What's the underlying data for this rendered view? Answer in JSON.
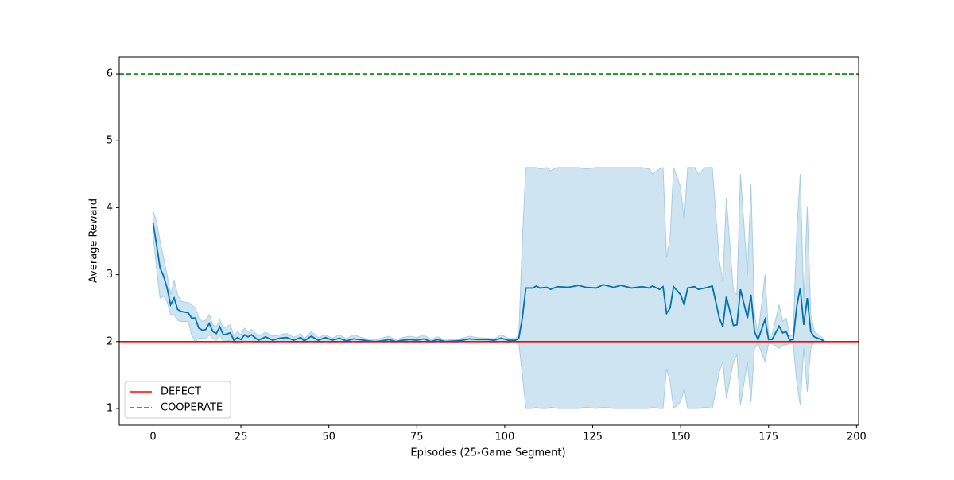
{
  "chart_data": {
    "type": "line",
    "xlabel": "Episodes (25-Game Segment)",
    "ylabel": "Average Reward",
    "xlim": [
      -9.6,
      200.6
    ],
    "ylim": [
      0.75,
      6.25
    ],
    "xticks": [
      0,
      25,
      50,
      75,
      100,
      125,
      150,
      175,
      200
    ],
    "yticks": [
      1,
      2,
      3,
      4,
      5,
      6
    ],
    "legend": "lower left",
    "x": [
      0,
      1,
      2,
      3,
      4,
      5,
      6,
      7,
      8,
      10,
      11,
      12,
      13,
      14,
      15,
      16,
      17,
      18,
      19,
      20,
      22,
      23,
      24,
      25,
      26,
      27,
      28,
      30,
      32,
      34,
      36,
      38,
      40,
      42,
      43,
      45,
      47,
      49,
      51,
      53,
      55,
      57,
      60,
      63,
      65,
      67,
      69,
      71,
      73,
      75,
      77,
      79,
      81,
      83,
      86,
      88,
      90,
      92,
      95,
      97,
      99,
      101,
      103,
      104,
      105,
      106,
      108,
      109,
      110,
      112,
      113,
      115,
      118,
      121,
      123,
      126,
      128,
      131,
      133,
      136,
      139,
      141,
      142,
      144,
      145,
      146,
      147,
      148,
      150,
      151,
      152,
      154,
      155,
      157,
      159,
      161,
      162,
      163,
      165,
      166,
      167,
      169,
      170,
      171,
      172,
      174,
      175,
      176,
      178,
      179,
      180,
      181,
      182,
      183,
      184,
      185,
      186,
      187,
      188,
      190,
      191
    ],
    "series": [
      {
        "color": "#0072b2",
        "band_color": "#a6cde3",
        "values": [
          3.78,
          3.45,
          3.1,
          2.98,
          2.8,
          2.55,
          2.65,
          2.48,
          2.45,
          2.43,
          2.35,
          2.35,
          2.2,
          2.17,
          2.18,
          2.27,
          2.15,
          2.12,
          2.22,
          2.1,
          2.13,
          2.02,
          2.06,
          2.03,
          2.1,
          2.07,
          2.1,
          2.02,
          2.07,
          2.02,
          2.05,
          2.06,
          2.02,
          2.06,
          2.01,
          2.08,
          2.02,
          2.06,
          2.02,
          2.05,
          2.01,
          2.04,
          2.02,
          2.0,
          2.01,
          2.03,
          2.0,
          2.02,
          2.03,
          2.02,
          2.04,
          2.0,
          2.03,
          2.0,
          2.01,
          2.02,
          2.04,
          2.03,
          2.03,
          2.02,
          2.05,
          2.02,
          2.02,
          2.05,
          2.35,
          2.8,
          2.8,
          2.83,
          2.8,
          2.81,
          2.78,
          2.82,
          2.81,
          2.84,
          2.81,
          2.8,
          2.85,
          2.81,
          2.84,
          2.8,
          2.82,
          2.8,
          2.83,
          2.78,
          2.82,
          2.42,
          2.5,
          2.82,
          2.7,
          2.55,
          2.8,
          2.82,
          2.78,
          2.8,
          2.83,
          2.35,
          2.22,
          2.67,
          2.24,
          2.25,
          2.78,
          2.35,
          2.7,
          2.15,
          2.03,
          2.33,
          2.03,
          2.03,
          2.23,
          2.13,
          2.15,
          2.02,
          2.03,
          2.52,
          2.8,
          2.25,
          2.65,
          2.15,
          2.07,
          2.03,
          2.0
        ],
        "lower": [
          3.6,
          3.1,
          2.65,
          2.68,
          2.6,
          2.4,
          2.4,
          2.32,
          2.3,
          2.3,
          2.1,
          2.0,
          2.05,
          2.05,
          2.05,
          2.1,
          2.05,
          2.02,
          2.1,
          2.0,
          2.02,
          1.97,
          1.97,
          1.98,
          2.0,
          2.0,
          2.0,
          1.98,
          2.0,
          1.98,
          2.0,
          2.0,
          1.98,
          2.0,
          1.98,
          2.0,
          1.98,
          2.0,
          1.98,
          2.0,
          1.98,
          2.0,
          1.98,
          1.98,
          1.98,
          2.0,
          1.98,
          1.98,
          2.0,
          1.98,
          2.0,
          1.98,
          2.0,
          1.98,
          1.99,
          2.0,
          2.0,
          2.0,
          2.0,
          1.99,
          2.0,
          1.99,
          2.0,
          1.98,
          1.5,
          1.0,
          1.0,
          1.02,
          1.0,
          1.0,
          1.02,
          1.0,
          1.0,
          1.0,
          1.02,
          1.0,
          1.02,
          1.0,
          1.0,
          1.0,
          1.0,
          1.0,
          1.02,
          1.0,
          1.0,
          1.6,
          1.4,
          1.0,
          1.1,
          1.3,
          1.0,
          1.0,
          1.0,
          1.02,
          1.0,
          1.55,
          1.7,
          1.15,
          1.7,
          1.8,
          1.05,
          1.7,
          1.1,
          1.9,
          1.97,
          1.7,
          1.97,
          1.97,
          1.9,
          1.95,
          1.95,
          1.97,
          1.97,
          1.4,
          1.05,
          1.9,
          1.25,
          1.9,
          2.0,
          2.0,
          2.0
        ],
        "upper": [
          3.95,
          3.8,
          3.5,
          3.25,
          3.0,
          2.7,
          2.92,
          2.7,
          2.6,
          2.58,
          2.55,
          2.5,
          2.35,
          2.3,
          2.32,
          2.4,
          2.25,
          2.22,
          2.32,
          2.2,
          2.25,
          2.08,
          2.15,
          2.1,
          2.2,
          2.15,
          2.18,
          2.08,
          2.14,
          2.08,
          2.1,
          2.12,
          2.06,
          2.12,
          2.04,
          2.15,
          2.06,
          2.1,
          2.05,
          2.1,
          2.04,
          2.1,
          2.05,
          2.03,
          2.05,
          2.08,
          2.03,
          2.06,
          2.08,
          2.06,
          2.1,
          2.03,
          2.07,
          2.02,
          2.03,
          2.05,
          2.08,
          2.06,
          2.05,
          2.04,
          2.1,
          2.05,
          2.04,
          2.1,
          3.5,
          4.6,
          4.6,
          4.6,
          4.58,
          4.6,
          4.55,
          4.6,
          4.6,
          4.6,
          4.58,
          4.6,
          4.6,
          4.6,
          4.6,
          4.6,
          4.6,
          4.58,
          4.5,
          4.58,
          4.6,
          3.25,
          3.55,
          4.6,
          4.3,
          3.8,
          4.6,
          4.6,
          4.5,
          4.6,
          4.6,
          3.2,
          2.9,
          4.15,
          2.75,
          2.7,
          4.5,
          3.0,
          4.35,
          2.4,
          2.1,
          3.0,
          2.1,
          2.1,
          2.55,
          2.3,
          2.35,
          2.08,
          2.1,
          3.6,
          4.5,
          2.6,
          4.02,
          2.4,
          2.15,
          2.07,
          2.0
        ]
      }
    ],
    "reference_lines": [
      {
        "name": "DEFECT",
        "value": 2,
        "color": "#ff0000",
        "style": "solid"
      },
      {
        "name": "COOPERATE",
        "value": 6,
        "color": "#008000",
        "style": "dashed"
      }
    ]
  }
}
